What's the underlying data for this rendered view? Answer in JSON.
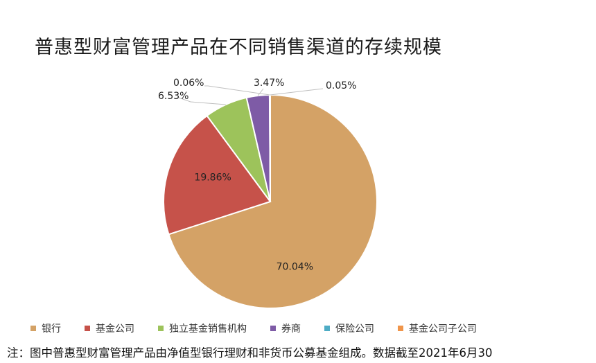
{
  "chart_data": {
    "type": "pie",
    "title": "普惠型财富管理产品在不同销售渠道的存续规模",
    "slices": [
      {
        "label": "银行",
        "value": 70.04,
        "display": "70.04%",
        "color": "#D4A266"
      },
      {
        "label": "基金公司",
        "value": 19.86,
        "display": "19.86%",
        "color": "#C6524A"
      },
      {
        "label": "独立基金销售机构",
        "value": 6.53,
        "display": "6.53%",
        "color": "#9DC35B"
      },
      {
        "label": "券商",
        "value": 3.47,
        "display": "3.47%",
        "color": "#7E5BA6"
      },
      {
        "label": "保险公司",
        "value": 0.06,
        "display": "0.06%",
        "color": "#4EACC5"
      },
      {
        "label": "基金公司子公司",
        "value": 0.05,
        "display": "0.05%",
        "color": "#F0954A"
      }
    ],
    "legend_position": "bottom"
  },
  "footnote": "注：图中普惠型财富管理产品由净值型银行理财和非货币公募基金组成。数据截至2021年6月30"
}
